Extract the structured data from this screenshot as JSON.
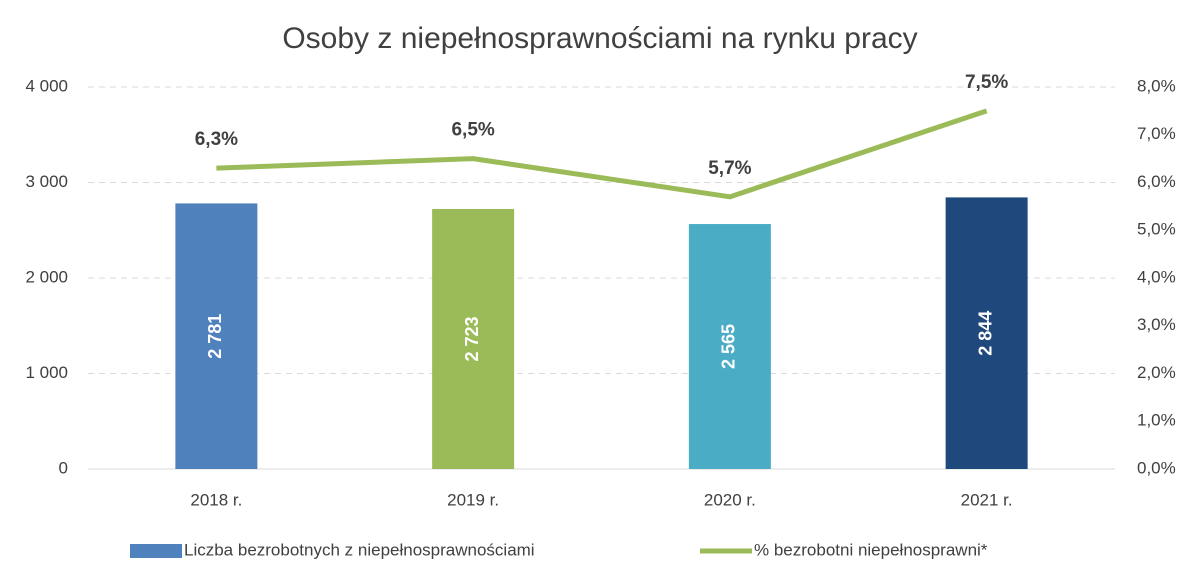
{
  "chart_data": {
    "type": "bar-line",
    "title": "Osoby z niepełnosprawnościami na rynku pracy",
    "categories": [
      "2018 r.",
      "2019 r.",
      "2020 r.",
      "2021 r."
    ],
    "series": [
      {
        "name": "Liczba bezrobotnych z niepełnosprawnościami",
        "type": "bar",
        "colors": [
          "#4f81bd",
          "#9bbb59",
          "#4bacc6",
          "#1f497d"
        ],
        "values": [
          2781,
          2723,
          2565,
          2844
        ],
        "value_labels": [
          "2 781",
          "2 723",
          "2 565",
          "2 844"
        ]
      },
      {
        "name": "% bezrobotni niepełnosprawni*",
        "type": "line",
        "axis": "y2",
        "color": "#9bbb59",
        "values": [
          6.3,
          6.5,
          5.7,
          7.5
        ],
        "value_labels": [
          "6,3%",
          "6,5%",
          "5,7%",
          "7,5%"
        ]
      }
    ],
    "ylim": [
      0,
      4000
    ],
    "yticks": [
      0,
      {
        "value": 1000,
        "label": "1 000"
      },
      {
        "value": 2000,
        "label": "2 000"
      },
      {
        "value": 3000,
        "label": "3 000"
      },
      {
        "value": 4000,
        "label": "4 000"
      }
    ],
    "y2lim": [
      0,
      8
    ],
    "y2ticks": [
      {
        "value": 0,
        "label": "0,0%"
      },
      {
        "value": 1,
        "label": "1,0%"
      },
      {
        "value": 2,
        "label": "2,0%"
      },
      {
        "value": 3,
        "label": "3,0%"
      },
      {
        "value": 4,
        "label": "4,0%"
      },
      {
        "value": 5,
        "label": "5,0%"
      },
      {
        "value": 6,
        "label": "6,0%"
      },
      {
        "value": 7,
        "label": "7,0%"
      },
      {
        "value": 8,
        "label": "8,0%"
      }
    ],
    "grid": true
  }
}
